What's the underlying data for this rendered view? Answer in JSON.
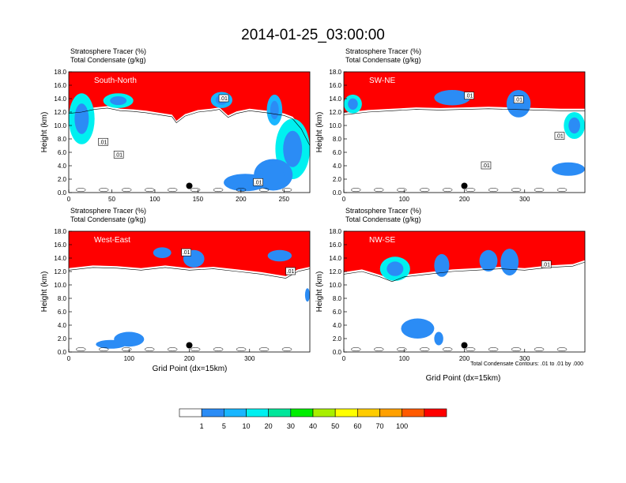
{
  "figure": {
    "title": "2014-01-25_03:00:00",
    "header_line1": "Stratosphere Tracer   (%)",
    "header_line2": "Total Condensate   (g/kg)",
    "y_axis_label": "Height (km)",
    "x_axis_label": "Grid Point (dx=15km)",
    "contour_note": "Total Condensate Contours: .01 to .01 by .000"
  },
  "chart_data": [
    {
      "type": "heatmap",
      "panel": "South-North",
      "ylim": [
        0,
        18
      ],
      "xlim": [
        0,
        280
      ],
      "y_ticks": [
        "0.0",
        "2.0",
        "4.0",
        "6.0",
        "8.0",
        "10.0",
        "12.0",
        "14.0",
        "16.0",
        "18.0"
      ],
      "x_ticks": [
        {
          "v": 0,
          "t": "0"
        },
        {
          "v": 50,
          "t": "50"
        },
        {
          "v": 100,
          "t": "100"
        },
        {
          "v": 150,
          "t": "150"
        },
        {
          "v": 200,
          "t": "200"
        },
        {
          "v": 250,
          "t": "250"
        }
      ],
      "marker": {
        "x": 140,
        "y": 1.0
      },
      "tropopause": [
        [
          0,
          14.8
        ],
        [
          15,
          15.0
        ],
        [
          30,
          15.4
        ],
        [
          45,
          15.6
        ],
        [
          60,
          15.2
        ],
        [
          75,
          15.1
        ],
        [
          90,
          14.9
        ],
        [
          105,
          14.6
        ],
        [
          120,
          14.3
        ],
        [
          125,
          13.4
        ],
        [
          135,
          14.4
        ],
        [
          150,
          15.0
        ],
        [
          165,
          15.2
        ],
        [
          175,
          15.4
        ],
        [
          185,
          14.2
        ],
        [
          195,
          14.8
        ],
        [
          210,
          15.2
        ],
        [
          230,
          14.9
        ],
        [
          250,
          14.5
        ],
        [
          260,
          14.0
        ],
        [
          270,
          12.5
        ],
        [
          280,
          10.0
        ]
      ],
      "lobes": [
        {
          "x": [
            0,
            30
          ],
          "y": [
            7.2,
            14.8
          ],
          "level": 20
        },
        {
          "x": [
            40,
            75
          ],
          "y": [
            12.6,
            14.8
          ],
          "level": 20
        },
        {
          "x": [
            165,
            190
          ],
          "y": [
            12.6,
            15.0
          ],
          "level": 10
        },
        {
          "x": [
            230,
            248
          ],
          "y": [
            10.0,
            14.6
          ],
          "level": 10
        },
        {
          "x": [
            180,
            230
          ],
          "y": [
            0.2,
            2.8
          ],
          "level": 5
        },
        {
          "x": [
            240,
            280
          ],
          "y": [
            2.0,
            11.0
          ],
          "level": 20
        },
        {
          "x": [
            215,
            260
          ],
          "y": [
            0.3,
            5.0
          ],
          "level": 5
        }
      ],
      "contour_labels": [
        {
          "x": 40,
          "y": 7.5,
          "t": ".01"
        },
        {
          "x": 58,
          "y": 5.6,
          "t": ".01"
        },
        {
          "x": 180,
          "y": 14.0,
          "t": ".01"
        },
        {
          "x": 220,
          "y": 1.5,
          "t": ".01"
        }
      ]
    },
    {
      "type": "heatmap",
      "panel": "SW-NE",
      "ylim": [
        0,
        18
      ],
      "xlim": [
        0,
        400
      ],
      "y_ticks": [
        "0.0",
        "2.0",
        "4.0",
        "6.0",
        "8.0",
        "10.0",
        "12.0",
        "14.0",
        "16.0",
        "18.0"
      ],
      "x_ticks": [
        {
          "v": 0,
          "t": "0"
        },
        {
          "v": 100,
          "t": "100"
        },
        {
          "v": 200,
          "t": "200"
        },
        {
          "v": 300,
          "t": "300"
        }
      ],
      "marker": {
        "x": 200,
        "y": 1.0
      },
      "tropopause": [
        [
          0,
          14.6
        ],
        [
          40,
          15.0
        ],
        [
          80,
          15.2
        ],
        [
          120,
          15.4
        ],
        [
          160,
          15.3
        ],
        [
          200,
          15.4
        ],
        [
          240,
          15.5
        ],
        [
          280,
          15.4
        ],
        [
          320,
          15.3
        ],
        [
          360,
          15.2
        ],
        [
          400,
          15.2
        ]
      ],
      "lobes": [
        {
          "x": [
            0,
            30
          ],
          "y": [
            11.8,
            14.6
          ],
          "level": 20
        },
        {
          "x": [
            150,
            210
          ],
          "y": [
            13.0,
            15.3
          ],
          "level": 5
        },
        {
          "x": [
            270,
            310
          ],
          "y": [
            11.2,
            15.3
          ],
          "level": 5
        },
        {
          "x": [
            365,
            400
          ],
          "y": [
            8.0,
            12.0
          ],
          "level": 20
        },
        {
          "x": [
            345,
            400
          ],
          "y": [
            2.5,
            4.5
          ],
          "level": 5
        }
      ],
      "contour_labels": [
        {
          "x": 208,
          "y": 14.4,
          "t": ".01"
        },
        {
          "x": 290,
          "y": 13.8,
          "t": ".01"
        },
        {
          "x": 236,
          "y": 4.0,
          "t": ".01"
        },
        {
          "x": 358,
          "y": 8.4,
          "t": ".01"
        }
      ]
    },
    {
      "type": "heatmap",
      "panel": "West-East",
      "ylim": [
        0,
        18
      ],
      "xlim": [
        0,
        400
      ],
      "y_ticks": [
        "0.0",
        "2.0",
        "4.0",
        "6.0",
        "8.0",
        "10.0",
        "12.0",
        "14.0",
        "16.0",
        "18.0"
      ],
      "x_ticks": [
        {
          "v": 0,
          "t": "0"
        },
        {
          "v": 100,
          "t": "100"
        },
        {
          "v": 200,
          "t": "200"
        },
        {
          "v": 300,
          "t": "300"
        }
      ],
      "marker": {
        "x": 200,
        "y": 1.0
      },
      "tropopause": [
        [
          0,
          15.2
        ],
        [
          40,
          15.6
        ],
        [
          80,
          15.5
        ],
        [
          120,
          15.2
        ],
        [
          160,
          15.6
        ],
        [
          200,
          15.2
        ],
        [
          240,
          15.4
        ],
        [
          280,
          15.0
        ],
        [
          320,
          14.6
        ],
        [
          360,
          14.0
        ],
        [
          380,
          15.0
        ],
        [
          400,
          15.4
        ]
      ],
      "lobes": [
        {
          "x": [
            140,
            170
          ],
          "y": [
            14.0,
            15.6
          ],
          "level": 5
        },
        {
          "x": [
            190,
            225
          ],
          "y": [
            12.6,
            15.2
          ],
          "level": 5
        },
        {
          "x": [
            330,
            370
          ],
          "y": [
            13.5,
            15.2
          ],
          "level": 5
        },
        {
          "x": [
            392,
            400
          ],
          "y": [
            7.5,
            9.5
          ],
          "level": 5
        },
        {
          "x": [
            45,
            95
          ],
          "y": [
            0.5,
            1.8
          ],
          "level": 5
        },
        {
          "x": [
            75,
            125
          ],
          "y": [
            0.8,
            3.0
          ],
          "level": 5
        }
      ],
      "contour_labels": [
        {
          "x": 195,
          "y": 14.8,
          "t": ".01"
        },
        {
          "x": 368,
          "y": 12.0,
          "t": ".01"
        }
      ]
    },
    {
      "type": "heatmap",
      "panel": "NW-SE",
      "ylim": [
        0,
        18
      ],
      "xlim": [
        0,
        400
      ],
      "y_ticks": [
        "0.0",
        "2.0",
        "4.0",
        "6.0",
        "8.0",
        "10.0",
        "12.0",
        "14.0",
        "16.0",
        "18.0"
      ],
      "x_ticks": [
        {
          "v": 0,
          "t": "0"
        },
        {
          "v": 100,
          "t": "100"
        },
        {
          "v": 200,
          "t": "200"
        },
        {
          "v": 300,
          "t": "300"
        }
      ],
      "marker": {
        "x": 200,
        "y": 1.0
      },
      "tropopause": [
        [
          0,
          14.6
        ],
        [
          30,
          15.0
        ],
        [
          60,
          14.2
        ],
        [
          80,
          13.5
        ],
        [
          100,
          14.2
        ],
        [
          140,
          14.6
        ],
        [
          180,
          15.0
        ],
        [
          220,
          15.2
        ],
        [
          260,
          15.4
        ],
        [
          300,
          15.2
        ],
        [
          340,
          15.6
        ],
        [
          380,
          15.8
        ],
        [
          400,
          16.4
        ]
      ],
      "lobes": [
        {
          "x": [
            60,
            110
          ],
          "y": [
            10.6,
            14.2
          ],
          "level": 20
        },
        {
          "x": [
            150,
            175
          ],
          "y": [
            11.2,
            14.6
          ],
          "level": 5
        },
        {
          "x": [
            225,
            255
          ],
          "y": [
            12.0,
            15.2
          ],
          "level": 5
        },
        {
          "x": [
            260,
            290
          ],
          "y": [
            11.4,
            15.4
          ],
          "level": 5
        },
        {
          "x": [
            95,
            150
          ],
          "y": [
            2.0,
            5.0
          ],
          "level": 5
        },
        {
          "x": [
            150,
            165
          ],
          "y": [
            1.0,
            3.0
          ],
          "level": 5
        }
      ],
      "contour_labels": [
        {
          "x": 336,
          "y": 13.0,
          "t": ".01"
        }
      ]
    }
  ],
  "colorbar": {
    "labels": [
      "1",
      "5",
      "10",
      "20",
      "30",
      "40",
      "50",
      "60",
      "70",
      "100"
    ],
    "colors": [
      "#ffffff",
      "#2b8cf5",
      "#19b6ff",
      "#00f0f0",
      "#00e69a",
      "#00ee00",
      "#a8ef00",
      "#ffff00",
      "#ffcc00",
      "#ffa000",
      "#ff5a00",
      "#ff0000"
    ]
  }
}
